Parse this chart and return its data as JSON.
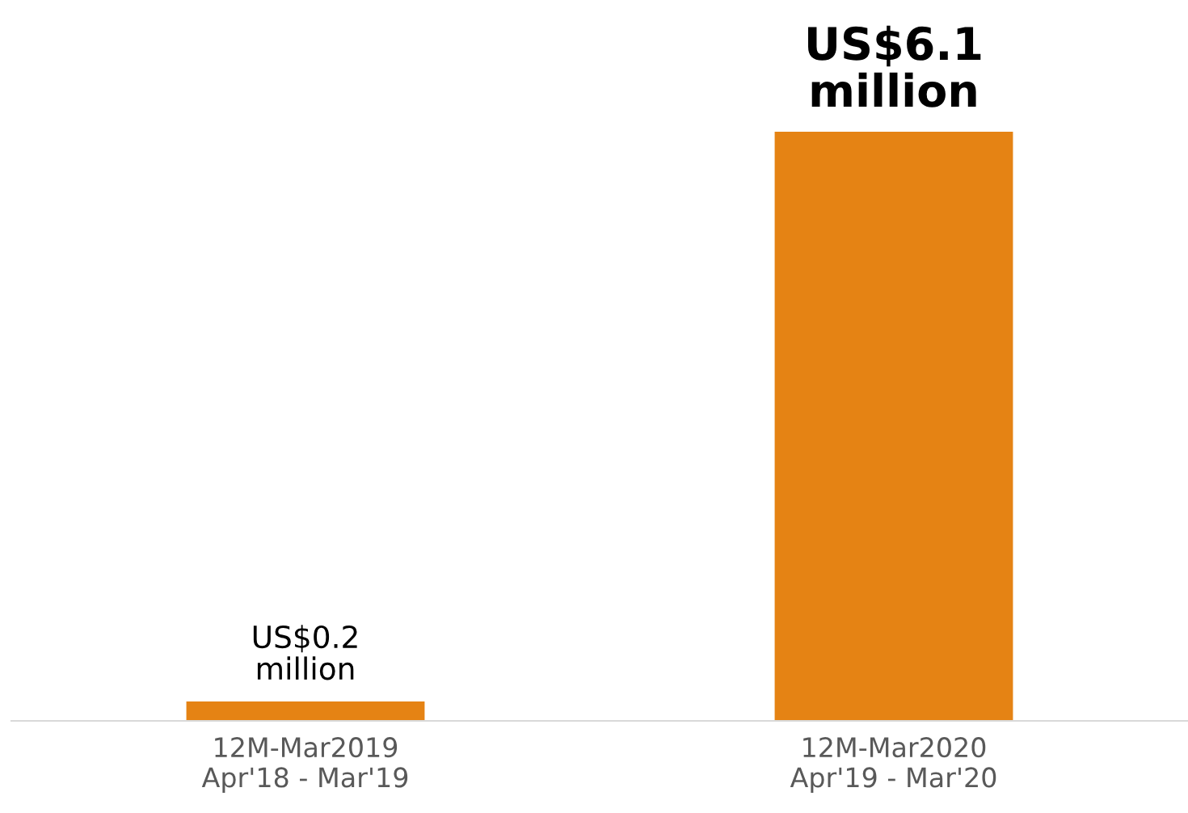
{
  "chart_data": {
    "type": "bar",
    "categories": [
      "12M-Mar2019\nApr'18 - Mar'19",
      "12M-Mar2020\nApr'19 - Mar'20"
    ],
    "values": [
      0.2,
      6.1
    ],
    "value_labels": [
      "US$0.2\nmillion",
      "US$6.1\nmillion"
    ],
    "color": "#e58314",
    "grid": false,
    "legend": false
  }
}
